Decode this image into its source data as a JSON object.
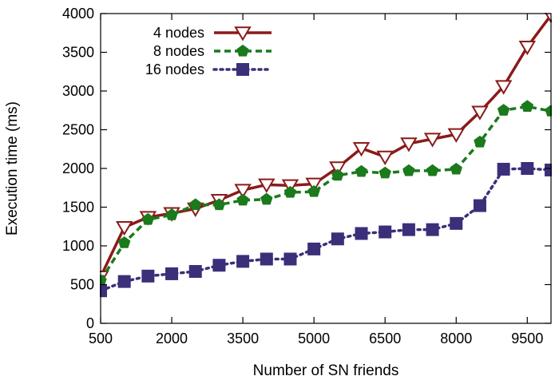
{
  "chart_data": {
    "type": "line",
    "title": "",
    "xlabel": "Number of SN friends",
    "ylabel": "Execution time (ms)",
    "xlim": [
      500,
      10000
    ],
    "ylim": [
      0,
      4000
    ],
    "xticks": [
      500,
      2000,
      3500,
      5000,
      6500,
      8000,
      9500
    ],
    "xtick_labels": [
      "500",
      "2000",
      "3500",
      "5000",
      "6500",
      "8000",
      "9500"
    ],
    "yticks": [
      0,
      500,
      1000,
      1500,
      2000,
      2500,
      3000,
      3500,
      4000
    ],
    "ytick_labels": [
      "0",
      "500",
      "1000",
      "1500",
      "2000",
      "2500",
      "3000",
      "3500",
      "4000"
    ],
    "grid": false,
    "legend_position": "top-left",
    "x": [
      500,
      1000,
      1500,
      2000,
      2500,
      3000,
      3500,
      4000,
      4500,
      5000,
      5500,
      6000,
      6500,
      7000,
      7500,
      8000,
      8500,
      9000,
      9500,
      10000
    ],
    "series": [
      {
        "name": "4 nodes",
        "color": "#8b1a1a",
        "marker": "triangle-down",
        "line_style": "solid",
        "values": [
          600,
          1240,
          1370,
          1420,
          1480,
          1590,
          1720,
          1790,
          1780,
          1800,
          2010,
          2260,
          2150,
          2320,
          2380,
          2440,
          2730,
          3060,
          3570,
          3980
        ]
      },
      {
        "name": "8 nodes",
        "color": "#1b7a1b",
        "marker": "pentagon",
        "line_style": "dashed",
        "values": [
          550,
          1040,
          1340,
          1400,
          1530,
          1530,
          1590,
          1600,
          1690,
          1700,
          1910,
          1960,
          1940,
          1970,
          1970,
          1990,
          2340,
          2750,
          2800,
          2740
        ]
      },
      {
        "name": "16 nodes",
        "color": "#3b2f7a",
        "marker": "square",
        "line_style": "dotted",
        "values": [
          420,
          540,
          610,
          640,
          670,
          750,
          800,
          830,
          830,
          960,
          1090,
          1160,
          1180,
          1210,
          1210,
          1290,
          1520,
          1990,
          2000,
          1980
        ]
      }
    ]
  }
}
